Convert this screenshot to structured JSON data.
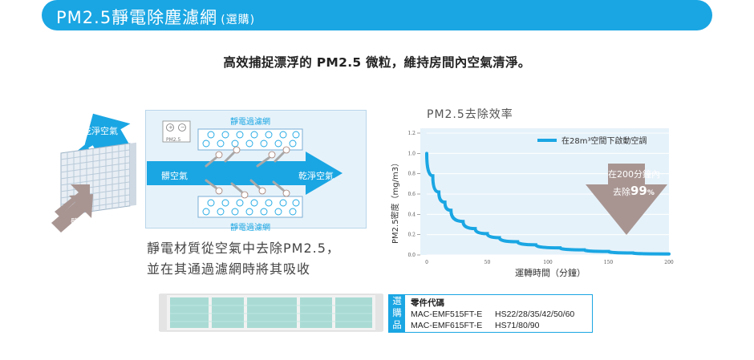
{
  "header": {
    "title": "PM2.5靜電除塵濾網",
    "subtitle": "(選購)",
    "bg_color": "#1aa6e3"
  },
  "headline": "高效捕捉漂浮的 PM2.5 微粒，維持房間內空氣清淨。",
  "diagram": {
    "top_label": "靜電過濾網",
    "bottom_label": "靜電過濾網",
    "pm_label": "PM2.5",
    "dirty_air": "髒空氣",
    "clean_air": "乾淨空氣",
    "left_clean_air": "乾淨空氣",
    "left_dirty_air": "髒空氣"
  },
  "description": {
    "line1": "靜電材質從空氣中去除PM2.5，",
    "line2": "並在其通過濾網時將其吸收"
  },
  "chart_data": {
    "type": "line",
    "title": "PM2.5去除效率",
    "xlabel": "運轉時間（分鐘）",
    "ylabel": "PM2.5密度（mg/m3）",
    "xlim": [
      0,
      200
    ],
    "ylim": [
      0,
      1.2
    ],
    "x_ticks": [
      "0",
      "50",
      "100",
      "150",
      "200"
    ],
    "y_ticks": [
      "0.0",
      "0.2",
      "0.4",
      "0.6",
      "0.8",
      "1.0",
      "1.2"
    ],
    "grid": true,
    "legend_position": "top-right",
    "series": [
      {
        "name": "在28m³空間下啟動空調",
        "color": "#1aa6e3",
        "x": [
          0,
          5,
          10,
          15,
          20,
          30,
          40,
          50,
          60,
          75,
          90,
          110,
          130,
          150,
          170,
          200
        ],
        "y": [
          1.0,
          0.78,
          0.62,
          0.52,
          0.44,
          0.33,
          0.26,
          0.21,
          0.17,
          0.13,
          0.1,
          0.07,
          0.05,
          0.035,
          0.02,
          0.01
        ]
      }
    ],
    "annotation": {
      "line1": "在200分鐘內",
      "line2_prefix": "去除",
      "line2_value": "99",
      "line2_unit": "%"
    }
  },
  "purchase": {
    "tag": [
      "選",
      "購",
      "品"
    ],
    "heading": "零件代碼",
    "items": [
      {
        "code": "MAC-EMF515FT-E",
        "models": "HS22/28/35/42/50/60"
      },
      {
        "code": "MAC-EMF615FT-E",
        "models": "HS71/80/90"
      }
    ]
  }
}
